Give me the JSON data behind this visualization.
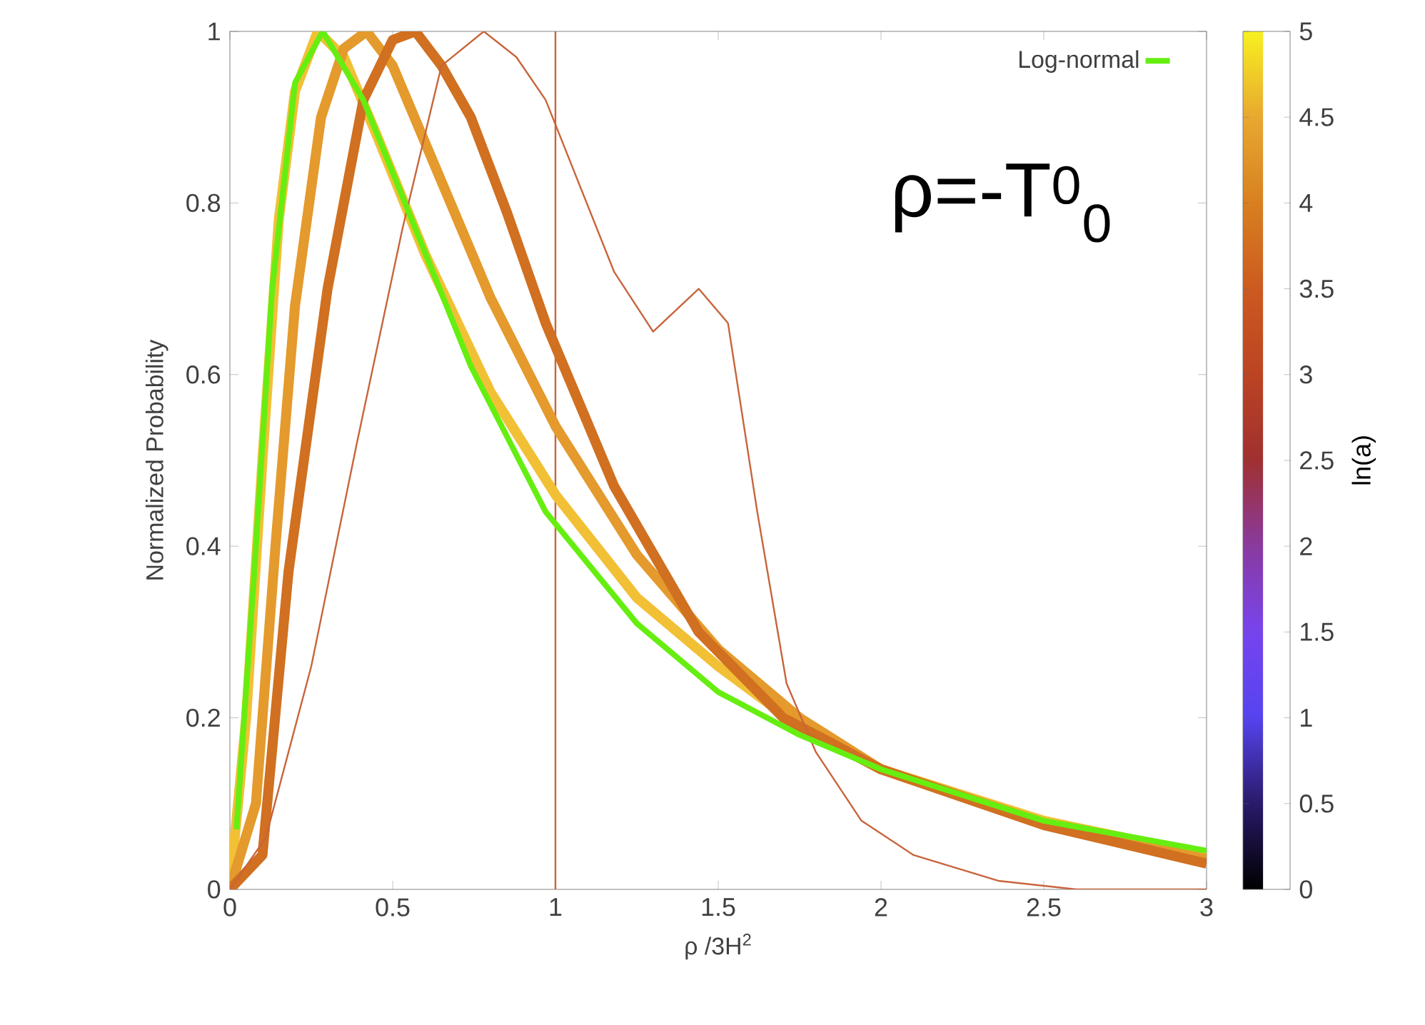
{
  "chart_data": {
    "type": "line",
    "xlabel": "ρ /3H$^{2}$",
    "ylabel": "Normalized Probability",
    "clabel": "ln(a)",
    "annotations": [
      "ρ=-T$^{0}$$_{0}$"
    ],
    "xlim": [
      0,
      3
    ],
    "ylim": [
      0,
      1
    ],
    "xticks": [
      0,
      0.5,
      1,
      1.5,
      2,
      2.5,
      3
    ],
    "yticks": [
      0,
      0.2,
      0.4,
      0.6,
      0.8,
      1
    ],
    "clim": [
      0,
      5
    ],
    "cticks": [
      0,
      0.5,
      1,
      1.5,
      2,
      2.5,
      3,
      3.5,
      4,
      4.5,
      5
    ],
    "legend": "top right",
    "line_style": "solid",
    "ref_lines": [
      {
        "axis": "x",
        "value": 1,
        "color": "#c8643c"
      }
    ],
    "series": [
      {
        "color": "#f2c035",
        "x": [
          0,
          0.05,
          0.1,
          0.15,
          0.2,
          0.27,
          0.35,
          0.45,
          0.6,
          0.8,
          1,
          1.25,
          1.5,
          1.75,
          2,
          2.5,
          3
        ],
        "values": [
          0,
          0.2,
          0.5,
          0.78,
          0.93,
          1.0,
          0.97,
          0.88,
          0.74,
          0.58,
          0.46,
          0.34,
          0.26,
          0.19,
          0.14,
          0.08,
          0.04
        ]
      },
      {
        "color": "#e49a2c",
        "x": [
          0,
          0.08,
          0.14,
          0.2,
          0.28,
          0.35,
          0.42,
          0.5,
          0.6,
          0.8,
          1,
          1.25,
          1.5,
          1.75,
          2,
          2.5,
          3
        ],
        "values": [
          0,
          0.1,
          0.4,
          0.68,
          0.9,
          0.98,
          1.0,
          0.96,
          0.87,
          0.69,
          0.54,
          0.39,
          0.28,
          0.2,
          0.14,
          0.077,
          0.035
        ]
      },
      {
        "color": "#d07020",
        "x": [
          0,
          0.1,
          0.18,
          0.3,
          0.41,
          0.5,
          0.57,
          0.65,
          0.74,
          0.85,
          0.97,
          1.18,
          1.44,
          1.7,
          2,
          2.5,
          3
        ],
        "values": [
          0,
          0.04,
          0.37,
          0.7,
          0.92,
          0.99,
          1.0,
          0.96,
          0.9,
          0.79,
          0.66,
          0.47,
          0.3,
          0.2,
          0.14,
          0.075,
          0.03
        ]
      },
      {
        "color": "#c8643c",
        "x": [
          0,
          0.11,
          0.25,
          0.39,
          0.53,
          0.65,
          0.78,
          0.88,
          0.97,
          1.18,
          1.3,
          1.44,
          1.53,
          1.62,
          1.71,
          1.8,
          1.94,
          2.1,
          2.36,
          2.6,
          3
        ],
        "values": [
          0,
          0.06,
          0.26,
          0.52,
          0.77,
          0.96,
          1.0,
          0.97,
          0.92,
          0.72,
          0.65,
          0.7,
          0.66,
          0.44,
          0.24,
          0.16,
          0.08,
          0.04,
          0.01,
          0,
          0
        ]
      },
      {
        "name": "Log-normal",
        "color": "#66ee11",
        "x": [
          0.02,
          0.075,
          0.13,
          0.2,
          0.285,
          0.41,
          0.57,
          0.74,
          0.97,
          1.25,
          1.5,
          1.75,
          2,
          2.5,
          3
        ],
        "values": [
          0.07,
          0.37,
          0.7,
          0.94,
          1.0,
          0.92,
          0.77,
          0.61,
          0.44,
          0.31,
          0.23,
          0.18,
          0.14,
          0.08,
          0.045
        ]
      }
    ]
  }
}
